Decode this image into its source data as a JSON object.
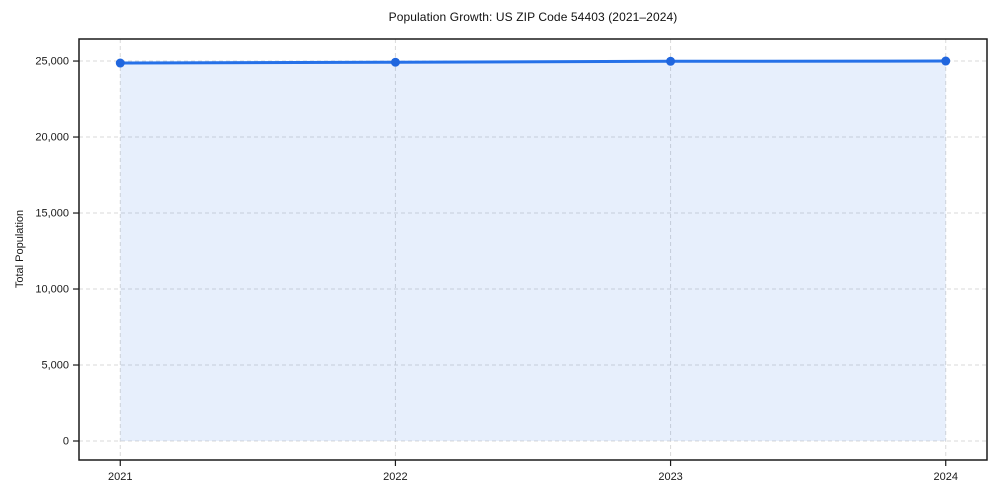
{
  "figure": {
    "background": "#ffffff"
  },
  "chart_data": {
    "type": "area",
    "title": "Population Growth: US ZIP Code 54403 (2021–2024)",
    "xlabel": "",
    "ylabel": "Total Population",
    "x": [
      2021,
      2022,
      2023,
      2024
    ],
    "series": [
      {
        "name": "Total Population",
        "values": [
          24870,
          24920,
          24985,
          25000
        ]
      }
    ],
    "fill_baseline": 0,
    "xlim": [
      2020.85,
      2024.15
    ],
    "ylim": [
      -1250,
      26450
    ],
    "xticks": [
      2021,
      2022,
      2023,
      2024
    ],
    "xtick_labels": [
      "2021",
      "2022",
      "2023",
      "2024"
    ],
    "yticks": [
      0,
      5000,
      10000,
      15000,
      20000,
      25000
    ],
    "ytick_labels": [
      "0",
      "5,000",
      "10,000",
      "15,000",
      "20,000",
      "25,000"
    ],
    "grid": true,
    "grid_style": "dashed",
    "legend": false,
    "colors": {
      "line": "#2671e8",
      "marker": "#2066de",
      "fill": "#2671e8",
      "fill_opacity": 0.11,
      "grid": "#d9d9d9",
      "spine": "#1a1a1a",
      "text": "#1a1a1a"
    }
  }
}
